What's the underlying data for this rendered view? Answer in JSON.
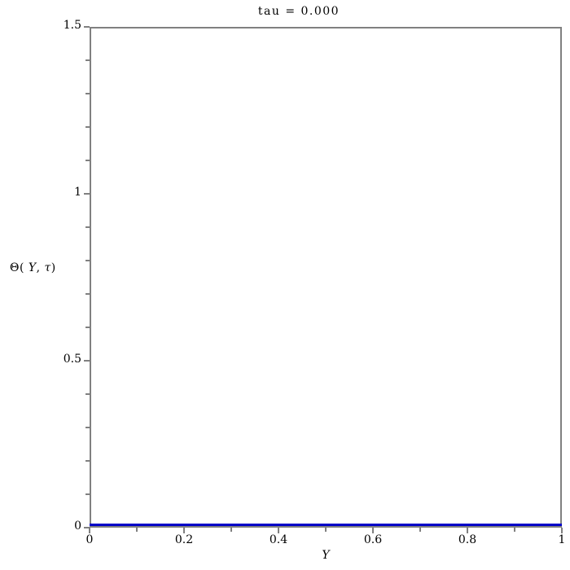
{
  "colors": {
    "line": "#0000C8",
    "axis": "#808080",
    "text": "#000000",
    "background": "#ffffff"
  },
  "ylabel_parts": {
    "prefix": "Θ( ",
    "var1": "Y",
    "separator": ", ",
    "var2": "τ",
    "suffix": ")"
  },
  "chart_data": {
    "type": "line",
    "title": "tau = 0.000",
    "xlabel": "Y",
    "ylabel": "Θ( Y, τ)",
    "xlim": [
      0,
      1
    ],
    "ylim": [
      0,
      1.5
    ],
    "grid": false,
    "legend": null,
    "x_ticks": {
      "major": [
        {
          "value": 0,
          "label": "0"
        },
        {
          "value": 0.2,
          "label": "0.2"
        },
        {
          "value": 0.4,
          "label": "0.4"
        },
        {
          "value": 0.6,
          "label": "0.6"
        },
        {
          "value": 0.8,
          "label": "0.8"
        },
        {
          "value": 1,
          "label": "1"
        }
      ],
      "minor": [
        0.1,
        0.3,
        0.5,
        0.7,
        0.9
      ]
    },
    "y_ticks": {
      "major": [
        {
          "value": 0,
          "label": "0"
        },
        {
          "value": 0.5,
          "label": "0.5"
        },
        {
          "value": 1,
          "label": "1"
        },
        {
          "value": 1.5,
          "label": "1.5"
        }
      ],
      "minor": [
        0.1,
        0.2,
        0.3,
        0.4,
        0.6,
        0.7,
        0.8,
        0.9,
        1.1,
        1.2,
        1.3,
        1.4
      ]
    },
    "series": [
      {
        "color": "#0000C8",
        "x": [
          0,
          1
        ],
        "y": [
          0,
          0
        ]
      }
    ]
  }
}
